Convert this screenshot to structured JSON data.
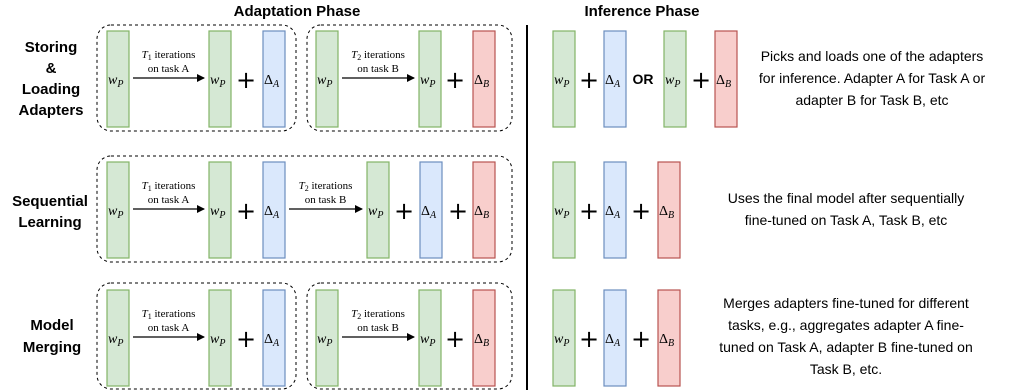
{
  "headers": {
    "adaptation": "Adaptation Phase",
    "inference": "Inference Phase"
  },
  "symbols": {
    "w": "w",
    "w_sub": "P",
    "delta": "Δ",
    "delta_a_sub": "A",
    "delta_b_sub": "B",
    "plus": "+",
    "or": "OR"
  },
  "iterations": {
    "t1": "T",
    "t1_sub": "1",
    "t2": "T",
    "t2_sub": "2",
    "suffix": "iterations",
    "task_a": "on task A",
    "task_b": "on task B"
  },
  "colors": {
    "green_fill": "#d5e8d4",
    "green_stroke": "#82b366",
    "blue_fill": "#dae8fc",
    "blue_stroke": "#6c8ebf",
    "red_fill": "#f8cecc",
    "red_stroke": "#b85450"
  },
  "rows": [
    {
      "id": "storing",
      "label_lines": [
        "Storing",
        "&",
        "Loading",
        "Adapters"
      ],
      "description_lines": [
        "Picks and loads one of the adapters",
        "for inference. Adapter A for Task A or",
        "adapter B for Task B, etc"
      ]
    },
    {
      "id": "sequential",
      "label_lines": [
        "Sequential",
        "Learning"
      ],
      "description_lines": [
        "Uses the final model after sequentially",
        "fine-tuned on Task A, Task B, etc"
      ]
    },
    {
      "id": "merging",
      "label_lines": [
        "Model",
        "Merging"
      ],
      "description_lines": [
        "Merges adapters fine-tuned for different",
        "tasks, e.g., aggregates adapter A fine-",
        "tuned on Task A, adapter B fine-tuned on",
        "Task B, etc."
      ]
    }
  ]
}
